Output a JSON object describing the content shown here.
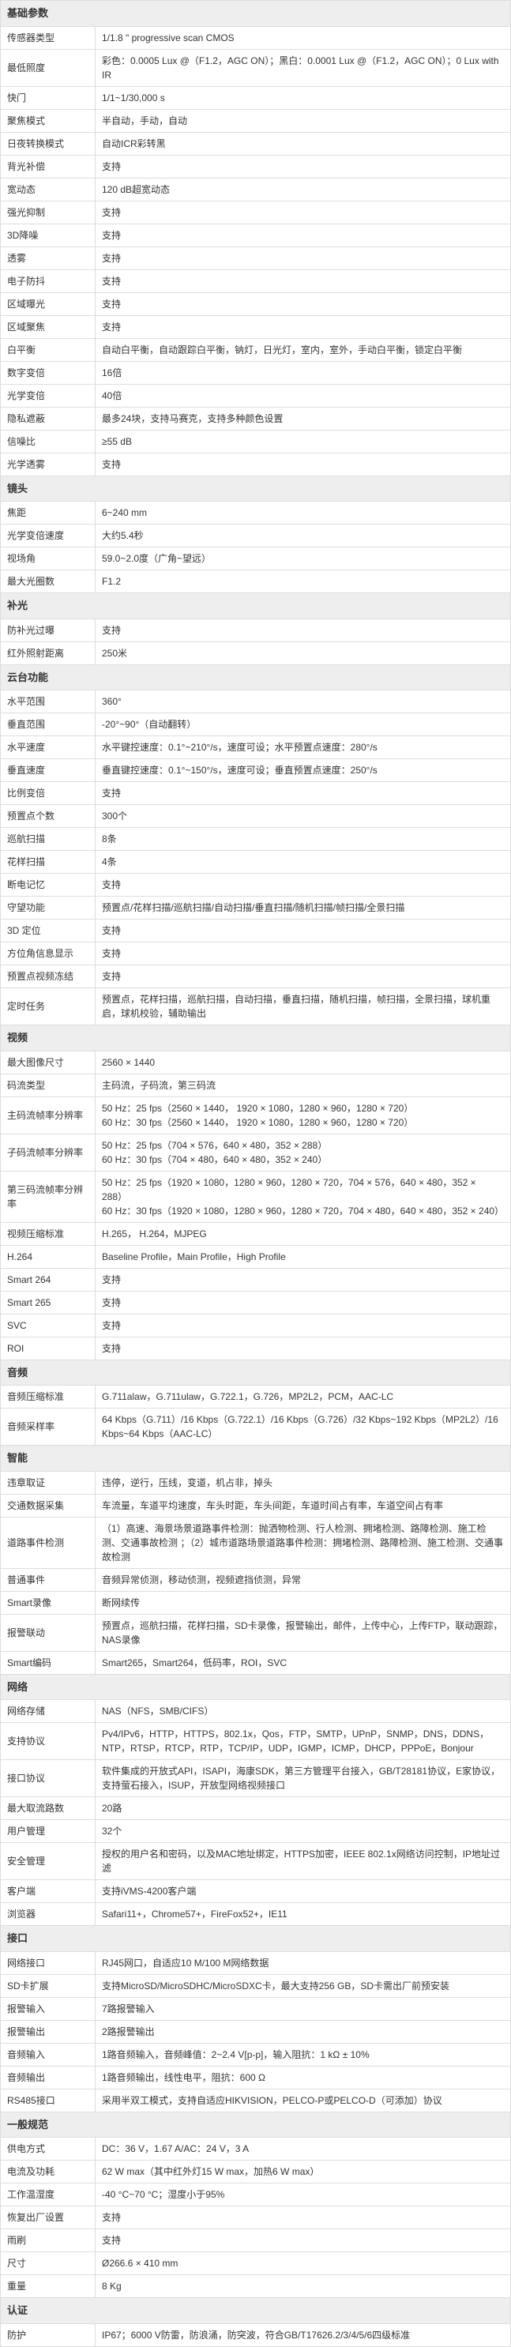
{
  "sections": [
    {
      "title": "基础参数",
      "rows": [
        {
          "label": "传感器类型",
          "value": "1/1.8 \" progressive scan CMOS"
        },
        {
          "label": "最低照度",
          "value": "彩色：0.0005 Lux @（F1.2，AGC ON）；黑白：0.0001 Lux @（F1.2，AGC ON）；0 Lux with IR"
        },
        {
          "label": "快门",
          "value": "1/1~1/30,000 s"
        },
        {
          "label": "聚焦模式",
          "value": "半自动，手动，自动"
        },
        {
          "label": "日夜转换模式",
          "value": "自动ICR彩转黑"
        },
        {
          "label": "背光补偿",
          "value": "支持"
        },
        {
          "label": "宽动态",
          "value": "120 dB超宽动态"
        },
        {
          "label": "强光抑制",
          "value": "支持"
        },
        {
          "label": "3D降噪",
          "value": "支持"
        },
        {
          "label": "透雾",
          "value": "支持"
        },
        {
          "label": "电子防抖",
          "value": "支持"
        },
        {
          "label": "区域曝光",
          "value": "支持"
        },
        {
          "label": "区域聚焦",
          "value": "支持"
        },
        {
          "label": "白平衡",
          "value": "自动白平衡，自动跟踪白平衡，钠灯，日光灯，室内，室外，手动白平衡，锁定白平衡"
        },
        {
          "label": "数字变倍",
          "value": "16倍"
        },
        {
          "label": "光学变倍",
          "value": "40倍"
        },
        {
          "label": "隐私遮蔽",
          "value": "最多24块，支持马赛克，支持多种颜色设置"
        },
        {
          "label": "信噪比",
          "value": "≥55 dB"
        },
        {
          "label": "光学透雾",
          "value": "支持"
        }
      ]
    },
    {
      "title": "镜头",
      "rows": [
        {
          "label": "焦距",
          "value": "6~240 mm"
        },
        {
          "label": "光学变倍速度",
          "value": "大约5.4秒"
        },
        {
          "label": "视场角",
          "value": "59.0~2.0度（广角~望远）"
        },
        {
          "label": "最大光圈数",
          "value": "F1.2"
        }
      ]
    },
    {
      "title": "补光",
      "rows": [
        {
          "label": "防补光过曝",
          "value": "支持"
        },
        {
          "label": "红外照射距离",
          "value": "250米"
        }
      ]
    },
    {
      "title": "云台功能",
      "rows": [
        {
          "label": "水平范围",
          "value": "360°"
        },
        {
          "label": "垂直范围",
          "value": "-20°~90°（自动翻转）"
        },
        {
          "label": "水平速度",
          "value": "水平键控速度：0.1°~210°/s，速度可设；水平预置点速度：280°/s"
        },
        {
          "label": "垂直速度",
          "value": "垂直键控速度：0.1°~150°/s，速度可设；垂直预置点速度：250°/s"
        },
        {
          "label": "比例变倍",
          "value": "支持"
        },
        {
          "label": "预置点个数",
          "value": "300个"
        },
        {
          "label": "巡航扫描",
          "value": "8条"
        },
        {
          "label": "花样扫描",
          "value": "4条"
        },
        {
          "label": "断电记忆",
          "value": "支持"
        },
        {
          "label": "守望功能",
          "value": "预置点/花样扫描/巡航扫描/自动扫描/垂直扫描/随机扫描/帧扫描/全景扫描"
        },
        {
          "label": "3D 定位",
          "value": "支持"
        },
        {
          "label": "方位角信息显示",
          "value": "支持"
        },
        {
          "label": "预置点视频冻结",
          "value": "支持"
        },
        {
          "label": "定时任务",
          "value": "预置点，花样扫描，巡航扫描，自动扫描，垂直扫描，随机扫描，帧扫描，全景扫描，球机重启，球机校验，辅助输出"
        }
      ]
    },
    {
      "title": "视频",
      "rows": [
        {
          "label": "最大图像尺寸",
          "value": "2560 × 1440"
        },
        {
          "label": "码流类型",
          "value": "主码流，子码流，第三码流"
        },
        {
          "label": "主码流帧率分辨率",
          "value": "50 Hz：25 fps（2560 × 1440，  1920 × 1080，1280 × 960，1280 × 720）\n60 Hz：30 fps（2560 × 1440，  1920 × 1080，1280 × 960，1280 × 720）"
        },
        {
          "label": "子码流帧率分辨率",
          "value": "50 Hz：25 fps（704 × 576，640 × 480，352 × 288）\n60 Hz：30 fps（704 × 480，640 × 480，352 × 240）"
        },
        {
          "label": "第三码流帧率分辨率",
          "value": "50 Hz：25 fps（1920 × 1080，1280 × 960，1280 × 720，704 × 576，640 × 480，352 × 288）\n60 Hz：30 fps（1920 × 1080，1280 × 960，1280 × 720，704 × 480，640 × 480，352 × 240）"
        },
        {
          "label": "视频压缩标准",
          "value": "H.265， H.264，MJPEG"
        },
        {
          "label": "H.264",
          "value": "Baseline Profile，Main Profile，High Profile"
        },
        {
          "label": "Smart 264",
          "value": "支持"
        },
        {
          "label": "Smart 265",
          "value": "支持"
        },
        {
          "label": "SVC",
          "value": "支持"
        },
        {
          "label": "ROI",
          "value": "支持"
        }
      ]
    },
    {
      "title": "音频",
      "rows": [
        {
          "label": "音频压缩标准",
          "value": "G.711alaw，G.711ulaw，G.722.1，G.726，MP2L2，PCM，AAC-LC"
        },
        {
          "label": "音频采样率",
          "value": "64 Kbps（G.711）/16 Kbps（G.722.1）/16 Kbps（G.726）/32 Kbps~192 Kbps（MP2L2）/16 Kbps~64 Kbps（AAC-LC）"
        }
      ]
    },
    {
      "title": "智能",
      "rows": [
        {
          "label": "违章取证",
          "value": "违停，逆行，压线，变道，机占非，掉头"
        },
        {
          "label": "交通数据采集",
          "value": "车流量，车道平均速度，车头时距，车头间距，车道时间占有率，车道空间占有率"
        },
        {
          "label": "道路事件检测",
          "value": "（1）高速、海景场景道路事件检测：抛洒物检测、行人检测、拥堵检测、路障检测、施工检测、交通事故检测 ；（2）城市道路场景道路事件检测：拥堵检测、路障检测、施工检测、交通事故检测"
        },
        {
          "label": "普通事件",
          "value": "音频异常侦测，移动侦测，视频遮挡侦测，异常"
        },
        {
          "label": "Smart录像",
          "value": "断网续传"
        },
        {
          "label": "报警联动",
          "value": "预置点，巡航扫描，花样扫描，SD卡录像，报警输出，邮件，上传中心，上传FTP，联动跟踪，NAS录像"
        },
        {
          "label": "Smart编码",
          "value": "Smart265，Smart264，低码率，ROI，SVC"
        }
      ]
    },
    {
      "title": "网络",
      "rows": [
        {
          "label": "网络存储",
          "value": "NAS（NFS，SMB/CIFS）"
        },
        {
          "label": "支持协议",
          "value": "Pv4/IPv6，HTTP，HTTPS，802.1x，Qos，FTP，SMTP，UPnP，SNMP，DNS，DDNS，NTP，RTSP，RTCP，RTP，TCP/IP，UDP，IGMP，ICMP，DHCP，PPPoE，Bonjour"
        },
        {
          "label": "接口协议",
          "value": "软件集成的开放式API，ISAPI，海康SDK，第三方管理平台接入，GB/T28181协议，E家协议，支持萤石接入，ISUP，开放型网络视频接口"
        },
        {
          "label": "最大取流路数",
          "value": "20路"
        },
        {
          "label": "用户管理",
          "value": "32个"
        },
        {
          "label": "安全管理",
          "value": "授权的用户名和密码，以及MAC地址绑定，HTTPS加密，IEEE 802.1x网络访问控制，IP地址过滤"
        },
        {
          "label": "客户端",
          "value": "支持iVMS-4200客户端"
        },
        {
          "label": "浏览器",
          "value": "Safari11+，Chrome57+，FireFox52+，IE11"
        }
      ]
    },
    {
      "title": "接口",
      "rows": [
        {
          "label": "网络接口",
          "value": "RJ45网口，自适应10 M/100 M网络数据"
        },
        {
          "label": "SD卡扩展",
          "value": "支持MicroSD/MicroSDHC/MicroSDXC卡，最大支持256 GB，SD卡需出厂前预安装"
        },
        {
          "label": "报警输入",
          "value": "7路报警输入"
        },
        {
          "label": "报警输出",
          "value": "2路报警输出"
        },
        {
          "label": "音频输入",
          "value": "1路音频输入，音频峰值：2~2.4 V[p-p]，输入阻抗：1 kΩ ± 10%"
        },
        {
          "label": "音频输出",
          "value": "1路音频输出，线性电平，阻抗：600 Ω"
        },
        {
          "label": "RS485接口",
          "value": "采用半双工模式，支持自适应HIKVISION，PELCO-P或PELCO-D（可添加）协议"
        }
      ]
    },
    {
      "title": "一般规范",
      "rows": [
        {
          "label": "供电方式",
          "value": "DC：36 V，1.67 A/AC：24 V，3 A"
        },
        {
          "label": "电流及功耗",
          "value": "62 W max（其中红外灯15 W max，加热6 W max）"
        },
        {
          "label": "工作温湿度",
          "value": "-40 °C~70 °C；湿度小于95%"
        },
        {
          "label": "恢复出厂设置",
          "value": "支持"
        },
        {
          "label": "雨刷",
          "value": "支持"
        },
        {
          "label": "尺寸",
          "value": "Ø266.6 × 410 mm"
        },
        {
          "label": "重量",
          "value": "8 Kg"
        }
      ]
    },
    {
      "title": "认证",
      "rows": [
        {
          "label": "防护",
          "value": "IP67；6000 V防雷，防浪涌，防突波，符合GB/T17626.2/3/4/5/6四级标准"
        }
      ]
    }
  ]
}
